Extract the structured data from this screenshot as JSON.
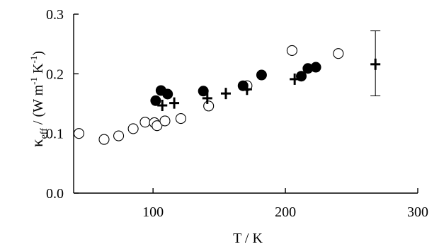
{
  "chart_data": {
    "type": "scatter",
    "xlabel": "T / K",
    "ylabel": {
      "symbol": "κ",
      "subscript": "eff",
      "sep": " / (W m",
      "exp1": "-1",
      "mid": " K",
      "exp2": "-1",
      "end": ")"
    },
    "xlim": [
      40,
      300
    ],
    "ylim": [
      0.0,
      0.3
    ],
    "xticks": [
      100,
      200,
      300
    ],
    "xtick_labels": [
      "100",
      "200",
      "300"
    ],
    "yticks": [
      0.0,
      0.1,
      0.2,
      0.3
    ],
    "ytick_labels": [
      "0.0",
      "0.1",
      "0.2",
      "0.3"
    ],
    "grid": false,
    "series": [
      {
        "marker": "open-circle",
        "points": [
          {
            "x": 44,
            "y": 0.1
          },
          {
            "x": 63,
            "y": 0.09
          },
          {
            "x": 74,
            "y": 0.096
          },
          {
            "x": 85,
            "y": 0.108
          },
          {
            "x": 94,
            "y": 0.119
          },
          {
            "x": 101,
            "y": 0.118
          },
          {
            "x": 103,
            "y": 0.113
          },
          {
            "x": 109,
            "y": 0.121
          },
          {
            "x": 121,
            "y": 0.125
          },
          {
            "x": 142,
            "y": 0.146
          },
          {
            "x": 171,
            "y": 0.18
          },
          {
            "x": 205,
            "y": 0.239
          },
          {
            "x": 240,
            "y": 0.234
          }
        ]
      },
      {
        "marker": "filled-circle",
        "points": [
          {
            "x": 102,
            "y": 0.155
          },
          {
            "x": 106,
            "y": 0.172
          },
          {
            "x": 111,
            "y": 0.166
          },
          {
            "x": 138,
            "y": 0.171
          },
          {
            "x": 168,
            "y": 0.18
          },
          {
            "x": 182,
            "y": 0.198
          },
          {
            "x": 212,
            "y": 0.196
          },
          {
            "x": 217,
            "y": 0.209
          },
          {
            "x": 223,
            "y": 0.211
          }
        ]
      },
      {
        "marker": "plus",
        "points": [
          {
            "x": 107,
            "y": 0.147
          },
          {
            "x": 116,
            "y": 0.151
          },
          {
            "x": 141,
            "y": 0.159
          },
          {
            "x": 155,
            "y": 0.167
          },
          {
            "x": 171,
            "y": 0.174
          },
          {
            "x": 207,
            "y": 0.191
          },
          {
            "x": 268,
            "y": 0.216
          }
        ]
      }
    ],
    "error_bar": {
      "x": 268,
      "y_low": 0.163,
      "y_high": 0.272
    }
  }
}
